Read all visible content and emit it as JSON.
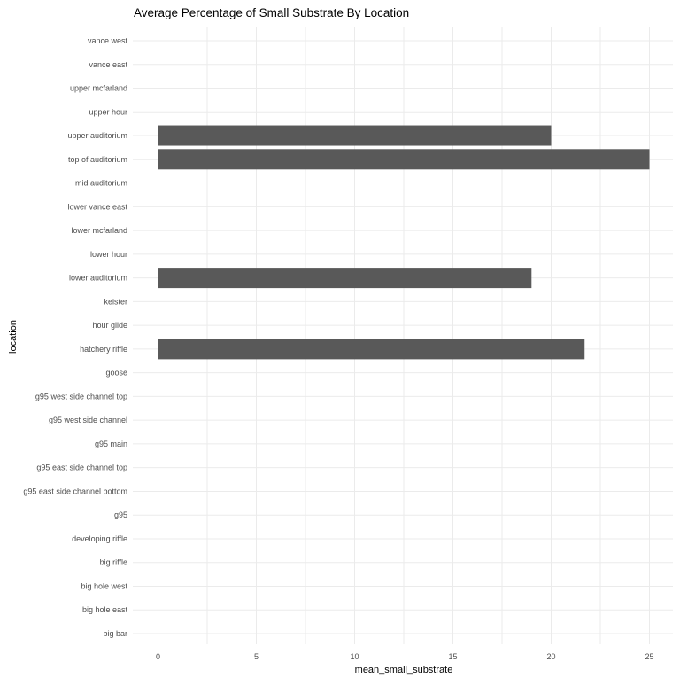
{
  "chart_data": {
    "type": "bar",
    "orientation": "horizontal",
    "title": "Average Percentage of Small Substrate By Location",
    "xlabel": "mean_small_substrate",
    "ylabel": "location",
    "xlim": [
      0,
      25
    ],
    "xticks": [
      "0",
      "5",
      "10",
      "15",
      "20",
      "25"
    ],
    "grid": true,
    "categories": [
      "big bar",
      "big hole east",
      "big hole west",
      "big riffle",
      "developing riffle",
      "g95",
      "g95 east side channel bottom",
      "g95 east side channel top",
      "g95 main",
      "g95 west side channel",
      "g95 west side channel top",
      "goose",
      "hatchery riffle",
      "hour glide",
      "keister",
      "lower auditorium",
      "lower hour",
      "lower mcfarland",
      "lower vance east",
      "mid auditorium",
      "top of auditorium",
      "upper auditorium",
      "upper hour",
      "upper mcfarland",
      "vance east",
      "vance west"
    ],
    "values": [
      0,
      0,
      0,
      0,
      0,
      0,
      0,
      0,
      0,
      0,
      0,
      0,
      21.7,
      0,
      0,
      19.0,
      0,
      0,
      0,
      0,
      25.0,
      20.0,
      0,
      0,
      0,
      0
    ],
    "bar_color": "#595959",
    "grid_color": "#ebebeb"
  }
}
